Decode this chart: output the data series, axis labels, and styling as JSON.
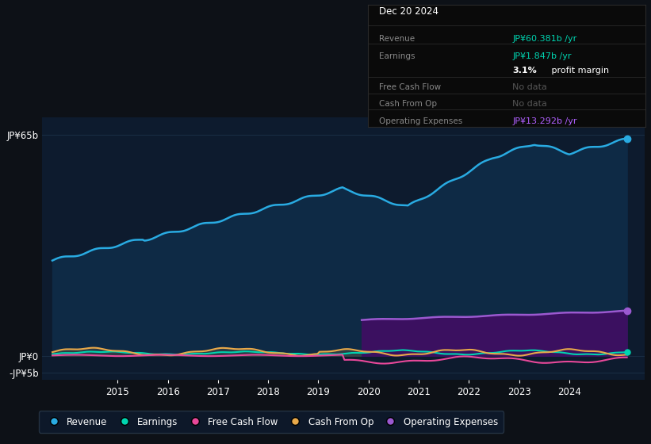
{
  "background_color": "#0d1117",
  "plot_bg_color": "#0d1b2e",
  "title_box": {
    "date": "Dec 20 2024",
    "revenue_label": "Revenue",
    "revenue_val": "JP¥60.381b",
    "earnings_label": "Earnings",
    "earnings_val": "JP¥1.847b",
    "profit_margin_bold": "3.1%",
    "profit_margin_rest": " profit margin",
    "fcf_label": "Free Cash Flow",
    "fcf_val": "No data",
    "cop_label": "Cash From Op",
    "cop_val": "No data",
    "opex_label": "Operating Expenses",
    "opex_val": "JP¥13.292b"
  },
  "series": {
    "revenue": {
      "color": "#29abe2",
      "fill_color": "#0e2a45",
      "label": "Revenue"
    },
    "earnings": {
      "color": "#00d4b0",
      "label": "Earnings"
    },
    "free_cash_flow": {
      "color": "#e8489a",
      "label": "Free Cash Flow"
    },
    "cash_from_op": {
      "color": "#e8a94a",
      "label": "Cash From Op"
    },
    "operating_expenses": {
      "color": "#9b59d0",
      "fill_color": "#3b1060",
      "label": "Operating Expenses"
    }
  },
  "grid_color": "#1a2e44",
  "ylim": [
    -7,
    70
  ],
  "xlim": [
    2013.5,
    2025.5
  ],
  "x_ticks": [
    2015,
    2016,
    2017,
    2018,
    2019,
    2020,
    2021,
    2022,
    2023,
    2024
  ],
  "y_labels": [
    [
      65,
      "JP¥65b"
    ],
    [
      0,
      "JP¥0"
    ],
    [
      -5,
      "-JP¥5b"
    ]
  ]
}
